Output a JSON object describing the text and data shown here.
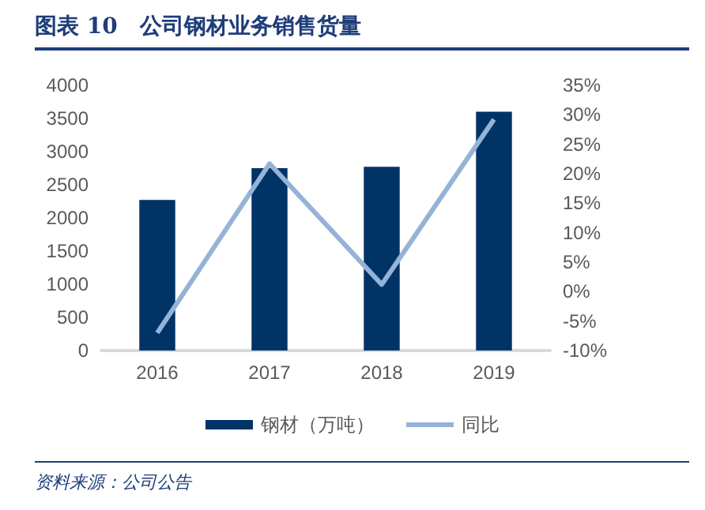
{
  "chart_data": {
    "type": "bar",
    "title": "图表 10　公司钢材业务销售货量",
    "categories": [
      "2016",
      "2017",
      "2018",
      "2019"
    ],
    "series": [
      {
        "name": "钢材（万吨）",
        "color": "#003366",
        "values": [
          2270,
          2750,
          2770,
          3600
        ]
      },
      {
        "name": "同比",
        "type": "line",
        "axis": "y2",
        "color": "#95b3d7",
        "values": [
          -7,
          21.7,
          1.2,
          29.2
        ]
      }
    ],
    "ylim": [
      0,
      4000
    ],
    "yticks": [
      0,
      500,
      1000,
      1500,
      2000,
      2500,
      3000,
      3500,
      4000
    ],
    "y2lim": [
      -10,
      35
    ],
    "y2ticks": [
      {
        "value": -10,
        "label": "-10%"
      },
      {
        "value": -5,
        "label": "-5%"
      },
      {
        "value": 0,
        "label": "0%"
      },
      {
        "value": 5,
        "label": "5%"
      },
      {
        "value": 10,
        "label": "10%"
      },
      {
        "value": 15,
        "label": "15%"
      },
      {
        "value": 20,
        "label": "20%"
      },
      {
        "value": 25,
        "label": "25%"
      },
      {
        "value": 30,
        "label": "30%"
      },
      {
        "value": 35,
        "label": "35%"
      }
    ],
    "legend": "bottom",
    "marker": "none",
    "grid": false,
    "annotations": [
      "资料来源：公司公告"
    ]
  }
}
